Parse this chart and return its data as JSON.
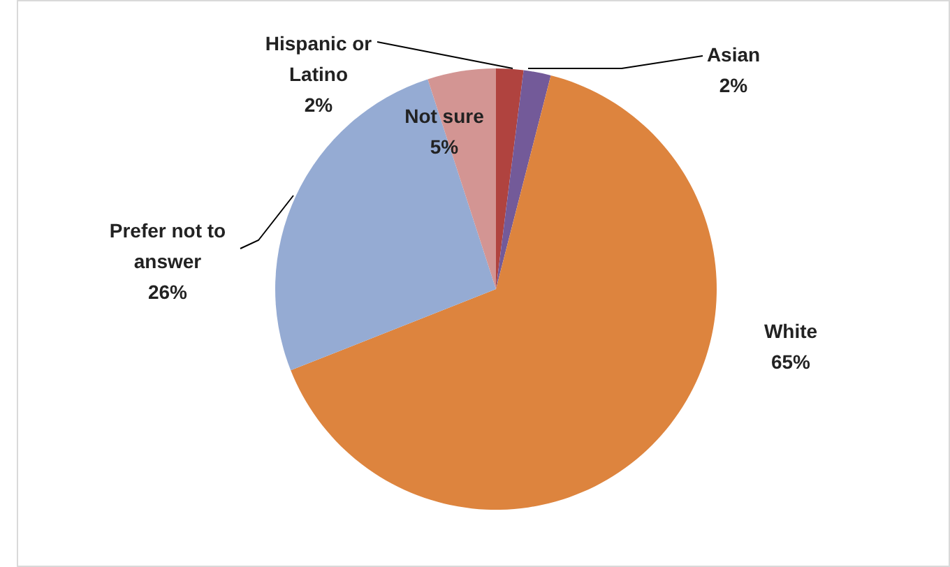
{
  "chart_data": {
    "type": "pie",
    "categories": [
      "Hispanic or Latino",
      "Asian",
      "White",
      "Prefer not to answer",
      "Not sure"
    ],
    "values": [
      2,
      2,
      65,
      26,
      5
    ],
    "colors": [
      "#b0433f",
      "#735a99",
      "#dd843e",
      "#95abd3",
      "#d39593"
    ],
    "value_labels": [
      "2%",
      "2%",
      "65%",
      "26%",
      "5%"
    ]
  }
}
